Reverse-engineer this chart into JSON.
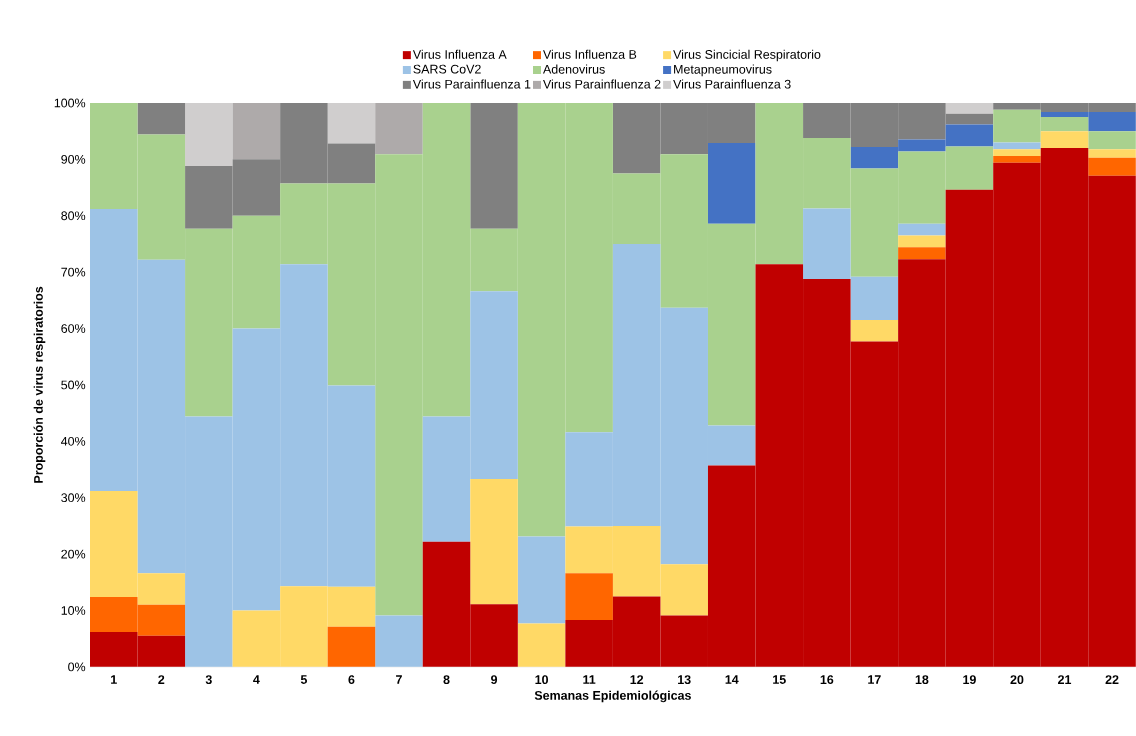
{
  "chart_data": {
    "type": "bar",
    "stacked": true,
    "legend": "top",
    "xlabel": "Semanas Epidemiológicas",
    "ylabel": "Proporción de virus respiratorios",
    "categories": [
      "1",
      "2",
      "3",
      "4",
      "5",
      "6",
      "7",
      "8",
      "9",
      "10",
      "11",
      "12",
      "13",
      "14",
      "15",
      "16",
      "17",
      "18",
      "19",
      "20",
      "21",
      "22"
    ],
    "ylim": [
      0,
      100
    ],
    "yticks": [
      {
        "value": 0,
        "label": "0%"
      },
      {
        "value": 10,
        "label": "10%"
      },
      {
        "value": 20,
        "label": "20%"
      },
      {
        "value": 30,
        "label": "30%"
      },
      {
        "value": 40,
        "label": "40%"
      },
      {
        "value": 50,
        "label": "50%"
      },
      {
        "value": 60,
        "label": "60%"
      },
      {
        "value": 70,
        "label": "70%"
      },
      {
        "value": 80,
        "label": "80%"
      },
      {
        "value": 90,
        "label": "90%"
      },
      {
        "value": 100,
        "label": "100%"
      }
    ],
    "series": [
      {
        "name": "Virus Influenza A",
        "color": "#c00000",
        "values": [
          6.2,
          5.5,
          0,
          0,
          0,
          0,
          0,
          22.2,
          11.1,
          0,
          8.3,
          12.5,
          9.1,
          35.7,
          71.4,
          68.8,
          57.7,
          72.3,
          84.6,
          89.4,
          92,
          87.1
        ]
      },
      {
        "name": "Virus Influenza B",
        "color": "#ff6600",
        "values": [
          6.2,
          5.5,
          0,
          0,
          0,
          7.1,
          0,
          0,
          0,
          0,
          8.3,
          0,
          0,
          0,
          0,
          0,
          0,
          2.1,
          0,
          1.2,
          0,
          3.2
        ]
      },
      {
        "name": "Virus Sincicial Respiratorio",
        "color": "#ffd966",
        "values": [
          18.8,
          5.6,
          0,
          10,
          14.3,
          7.1,
          0,
          0,
          22.2,
          7.7,
          8.3,
          12.5,
          9.1,
          0,
          0,
          0,
          3.8,
          2.1,
          0,
          1.2,
          3,
          1.5
        ]
      },
      {
        "name": "SARS CoV2",
        "color": "#9dc3e6",
        "values": [
          50,
          55.6,
          44.4,
          50,
          57.1,
          35.7,
          9.1,
          22.2,
          33.3,
          15.4,
          16.7,
          50,
          45.5,
          7.1,
          0,
          12.5,
          7.7,
          2.1,
          0,
          1.2,
          0,
          0
        ]
      },
      {
        "name": "Adenovirus",
        "color": "#a9d18e",
        "values": [
          18.8,
          22.2,
          33.3,
          20,
          14.3,
          35.8,
          81.8,
          55.6,
          11.1,
          76.9,
          58.4,
          12.5,
          27.2,
          35.8,
          28.6,
          12.5,
          19.2,
          12.8,
          7.7,
          5.8,
          2.5,
          3.2
        ]
      },
      {
        "name": "Metapneumovirus",
        "color": "#4472c4",
        "values": [
          0,
          0,
          0,
          0,
          0,
          0,
          0,
          0,
          0,
          0,
          0,
          0,
          0,
          14.3,
          0,
          0,
          3.8,
          2.1,
          3.9,
          0,
          0.9,
          3.4
        ]
      },
      {
        "name": "Virus Parainfluenza 1",
        "color": "#808080",
        "values": [
          0,
          5.6,
          11.1,
          10,
          14.3,
          7.1,
          0,
          0,
          22.3,
          0,
          0,
          12.5,
          9.1,
          7.1,
          0,
          6.2,
          7.8,
          6.5,
          1.9,
          1.2,
          1.6,
          1.6
        ]
      },
      {
        "name": "Virus Parainfluenza 2",
        "color": "#aeaaaa",
        "values": [
          0,
          0,
          0,
          10,
          0,
          0,
          9.1,
          0,
          0,
          0,
          0,
          0,
          0,
          0,
          0,
          0,
          0,
          0,
          0,
          0,
          0,
          0
        ]
      },
      {
        "name": "Virus Parainfluenza 3",
        "color": "#d0cece",
        "values": [
          0,
          0,
          11.2,
          0,
          0,
          7.2,
          0,
          0,
          0,
          0,
          0,
          0,
          0,
          0,
          0,
          0,
          0,
          0,
          1.9,
          0,
          0,
          0
        ]
      }
    ]
  }
}
